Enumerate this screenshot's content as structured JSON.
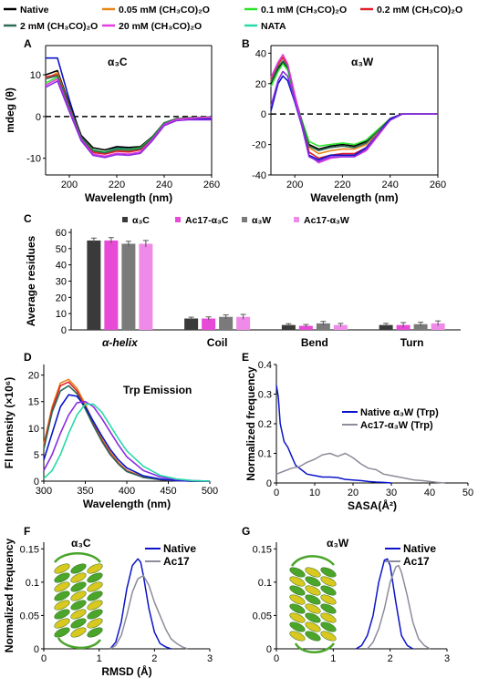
{
  "legend_top": [
    {
      "label": "Native",
      "color": "#000000"
    },
    {
      "label": "0.05 mM (CH₃CO)₂O",
      "color": "#e8841a"
    },
    {
      "label": "0.1 mM (CH₃CO)₂O",
      "color": "#2de42d"
    },
    {
      "label": "0.2 mM (CH₃CO)₂O",
      "color": "#e0202a"
    },
    {
      "label": "2 mM (CH₃CO)₂O",
      "color": "#2e6b5a"
    },
    {
      "label": "20 mM (CH₃CO)₂O",
      "color": "#e23de0"
    },
    {
      "label": "NATA",
      "color": "#27d9a8"
    }
  ],
  "panels": {
    "A": {
      "letter": "A",
      "title": "α₃C"
    },
    "B": {
      "letter": "B",
      "title": "α₃W"
    },
    "C": {
      "letter": "C"
    },
    "D": {
      "letter": "D",
      "title": "Trp Emission"
    },
    "E": {
      "letter": "E"
    },
    "F": {
      "letter": "F",
      "title": "α₃C"
    },
    "G": {
      "letter": "G",
      "title": "α₃W"
    }
  },
  "chart_data": [
    {
      "panel": "A",
      "type": "line",
      "xlabel": "Wavelength (nm)",
      "ylabel": "mdeg (θ)",
      "xlim": [
        190,
        260
      ],
      "ylim": [
        -14,
        17
      ],
      "xticks": [
        200,
        220,
        240,
        260
      ],
      "yticks": [
        -10,
        0,
        10
      ],
      "reference_line": 0,
      "x": [
        190,
        195,
        200,
        205,
        210,
        215,
        220,
        225,
        230,
        235,
        240,
        245,
        250,
        255,
        260
      ],
      "series": [
        {
          "color": "#0a14c8",
          "values": [
            14,
            14,
            4,
            -5,
            -8,
            -8.5,
            -7.5,
            -7.8,
            -7.5,
            -5,
            -1.5,
            -0.5,
            -0.5,
            -0.5,
            -0.5
          ]
        },
        {
          "color": "#000000",
          "values": [
            10,
            11,
            3,
            -4.5,
            -7.5,
            -8,
            -7.2,
            -7.4,
            -7.2,
            -4.8,
            -1.5,
            -0.5,
            -0.3,
            -0.2,
            -0.2
          ]
        },
        {
          "color": "#e8841a",
          "values": [
            9,
            10.5,
            2.5,
            -5,
            -8.3,
            -8.8,
            -8,
            -8.2,
            -7.8,
            -5,
            -1.6,
            -0.6,
            -0.4,
            -0.2,
            -0.1
          ]
        },
        {
          "color": "#2de42d",
          "values": [
            8,
            9.5,
            2,
            -5,
            -8,
            -8.5,
            -7.7,
            -7.9,
            -7.5,
            -4.9,
            -1.5,
            -0.5,
            -0.3,
            -0.2,
            -0.1
          ]
        },
        {
          "color": "#e0202a",
          "values": [
            9.5,
            10,
            2.5,
            -5.2,
            -8.6,
            -9,
            -8.3,
            -8.5,
            -8,
            -5.2,
            -1.7,
            -0.6,
            -0.4,
            -0.3,
            -0.2
          ]
        },
        {
          "color": "#2e6b5a",
          "values": [
            9,
            9.8,
            2.3,
            -5,
            -8.2,
            -8.7,
            -7.9,
            -8.1,
            -7.7,
            -5,
            -1.6,
            -0.6,
            -0.4,
            -0.2,
            -0.1
          ]
        },
        {
          "color": "#e23de0",
          "values": [
            7.5,
            9,
            1.5,
            -5.5,
            -9,
            -9.5,
            -8.8,
            -9,
            -8.5,
            -5.5,
            -1.9,
            -0.7,
            -0.4,
            -0.3,
            -0.2
          ]
        },
        {
          "color": "#8a2be2",
          "values": [
            7,
            8.5,
            1.2,
            -5.8,
            -9.3,
            -9.8,
            -9.1,
            -9.3,
            -8.8,
            -5.8,
            -2.2,
            -1,
            -0.8,
            -0.8,
            -0.8
          ]
        }
      ]
    },
    {
      "panel": "B",
      "type": "line",
      "xlabel": "Wavelength (nm)",
      "ylabel": "",
      "xlim": [
        190,
        260
      ],
      "ylim": [
        -40,
        45
      ],
      "xticks": [
        200,
        220,
        240,
        260
      ],
      "yticks": [
        -40,
        -20,
        0,
        20,
        40
      ],
      "reference_line": 0,
      "x": [
        190,
        193,
        195,
        197,
        200,
        203,
        206,
        210,
        215,
        220,
        225,
        230,
        235,
        240,
        245,
        250,
        260
      ],
      "series": [
        {
          "color": "#000000",
          "values": [
            20,
            30,
            34,
            30,
            12,
            -5,
            -20,
            -23,
            -21,
            -20,
            -21,
            -18,
            -11,
            -3,
            0,
            0,
            0
          ]
        },
        {
          "color": "#e8841a",
          "values": [
            22,
            32,
            38,
            33,
            13,
            -6,
            -22,
            -26,
            -24,
            -23,
            -23,
            -20,
            -12,
            -3,
            0,
            0,
            0
          ]
        },
        {
          "color": "#2de42d",
          "values": [
            18,
            28,
            33,
            29,
            11,
            -4,
            -18,
            -21,
            -20,
            -19,
            -20,
            -17,
            -10,
            -3,
            0,
            0,
            0
          ]
        },
        {
          "color": "#e0202a",
          "values": [
            23,
            33,
            37,
            32,
            12,
            -6,
            -25,
            -29,
            -27,
            -26,
            -26,
            -22,
            -13,
            -3,
            0,
            0,
            0
          ]
        },
        {
          "color": "#2e6b5a",
          "values": [
            21,
            31,
            35,
            31,
            12,
            -5,
            -21,
            -24,
            -22,
            -21,
            -22,
            -19,
            -11,
            -3,
            0,
            0,
            0
          ]
        },
        {
          "color": "#e23de0",
          "values": [
            24,
            34,
            39,
            33,
            13,
            -7,
            -27,
            -32,
            -29,
            -28,
            -28,
            -24,
            -14,
            -4,
            0,
            0,
            0
          ]
        },
        {
          "color": "#0a14c8",
          "values": [
            2,
            20,
            25,
            22,
            8,
            -8,
            -27,
            -30,
            -27,
            -27,
            -27,
            -22,
            -13,
            -3,
            0,
            0,
            0
          ]
        },
        {
          "color": "#8a2be2",
          "values": [
            5,
            22,
            28,
            25,
            9,
            -8,
            -28,
            -31,
            -28,
            -28,
            -28,
            -23,
            -13,
            -4,
            0,
            0,
            0
          ]
        }
      ]
    },
    {
      "panel": "C",
      "type": "bar",
      "ylabel": "Average residues",
      "ylim": [
        0,
        60
      ],
      "yticks": [
        0,
        10,
        20,
        30,
        40,
        50,
        60
      ],
      "categories": [
        "α-helix",
        "Coil",
        "Bend",
        "Turn"
      ],
      "series": [
        {
          "name": "α₃C",
          "color": "#3a3a3a",
          "values": [
            55,
            7,
            3,
            3
          ],
          "errors": [
            1.5,
            0.8,
            0.8,
            1
          ]
        },
        {
          "name": "Ac17-α₃C",
          "color": "#e74ad7",
          "values": [
            55,
            7,
            2.5,
            3
          ],
          "errors": [
            1.8,
            1,
            0.8,
            1.5
          ]
        },
        {
          "name": "α₃W",
          "color": "#7a7a7a",
          "values": [
            53,
            8,
            4,
            3.5
          ],
          "errors": [
            1.5,
            1.2,
            1.2,
            1.2
          ]
        },
        {
          "name": "Ac17-α₃W",
          "color": "#f08ae8",
          "values": [
            53,
            8,
            3,
            4
          ],
          "errors": [
            2,
            1.5,
            1,
            1.5
          ]
        }
      ]
    },
    {
      "panel": "D",
      "type": "line",
      "xlabel": "Wavelength (nm)",
      "ylabel": "Fl Intensity (×10⁶)",
      "xlim": [
        300,
        500
      ],
      "ylim": [
        0,
        22
      ],
      "xticks": [
        300,
        350,
        400,
        450,
        500
      ],
      "yticks": [
        0,
        5,
        10,
        15,
        20
      ],
      "x": [
        300,
        310,
        320,
        330,
        340,
        350,
        360,
        370,
        380,
        390,
        400,
        420,
        440,
        460,
        480,
        500
      ],
      "series": [
        {
          "color": "#e8841a",
          "values": [
            7,
            14,
            18.5,
            19.2,
            17.5,
            14.5,
            11,
            8,
            5.5,
            3.5,
            2,
            0.8,
            0.3,
            0.1,
            0,
            0
          ]
        },
        {
          "color": "#e0202a",
          "values": [
            6.5,
            13.5,
            18,
            18.7,
            17,
            14,
            10.6,
            7.7,
            5.2,
            3.3,
            1.9,
            0.7,
            0.3,
            0.1,
            0,
            0
          ]
        },
        {
          "color": "#2e6b5a",
          "values": [
            6,
            13,
            17,
            18,
            16.5,
            13.6,
            10.4,
            7.5,
            5,
            3.2,
            1.8,
            0.7,
            0.3,
            0.1,
            0,
            0
          ]
        },
        {
          "color": "#0a14c8",
          "values": [
            4,
            9,
            14,
            16.3,
            16,
            14,
            11.2,
            8.5,
            6,
            4,
            2.5,
            1,
            0.4,
            0.1,
            0,
            0
          ]
        },
        {
          "color": "#8a2be2",
          "values": [
            2,
            5,
            9,
            12.5,
            14.8,
            15,
            14,
            11.8,
            9.3,
            6.8,
            4.6,
            2,
            0.8,
            0.3,
            0.1,
            0
          ]
        },
        {
          "color": "#27d9a8",
          "values": [
            0.5,
            2,
            5,
            9,
            12.5,
            14.5,
            14.5,
            13,
            10.5,
            8,
            5.7,
            2.8,
            1.1,
            0.4,
            0.1,
            0
          ]
        }
      ]
    },
    {
      "panel": "E",
      "type": "line",
      "xlabel": "SASA(Å²)",
      "ylabel": "Normalized frequency",
      "xlim": [
        0,
        50
      ],
      "ylim": [
        0,
        0.4
      ],
      "xticks": [
        0,
        10,
        20,
        30,
        40,
        50
      ],
      "yticks": [
        0,
        0.1,
        0.2,
        0.3,
        0.4
      ],
      "series": [
        {
          "name": "Native α₃W (Trp)",
          "color": "#0a14c8",
          "x": [
            0,
            0.5,
            1,
            2,
            3,
            4,
            5,
            6,
            7,
            8,
            10,
            12,
            14,
            16,
            18,
            20,
            22,
            24,
            26,
            28,
            30
          ],
          "values": [
            0.33,
            0.29,
            0.2,
            0.14,
            0.12,
            0.09,
            0.06,
            0.05,
            0.04,
            0.03,
            0.025,
            0.02,
            0.02,
            0.018,
            0.012,
            0.01,
            0.008,
            0.005,
            0.003,
            0.002,
            0
          ]
        },
        {
          "name": "Ac17-α₃W (Trp)",
          "color": "#8c8c9a",
          "x": [
            0,
            2,
            4,
            6,
            8,
            10,
            12,
            14,
            16,
            18,
            20,
            22,
            24,
            26,
            28,
            30,
            32,
            34,
            36,
            38,
            40,
            42,
            44
          ],
          "values": [
            0.03,
            0.04,
            0.05,
            0.055,
            0.07,
            0.08,
            0.095,
            0.1,
            0.09,
            0.1,
            0.085,
            0.065,
            0.05,
            0.045,
            0.03,
            0.025,
            0.02,
            0.015,
            0.01,
            0.008,
            0.005,
            0.002,
            0
          ]
        }
      ]
    },
    {
      "panel": "F",
      "type": "line",
      "xlabel": "RMSD (Å)",
      "ylabel": "Normalized frequency",
      "xlim": [
        0,
        3
      ],
      "ylim": [
        0,
        0.16
      ],
      "xticks": [
        0,
        1,
        2,
        3
      ],
      "yticks": [
        0,
        0.05,
        0.1,
        0.15
      ],
      "series": [
        {
          "name": "Native",
          "color": "#0a14c8",
          "x": [
            1.2,
            1.3,
            1.4,
            1.5,
            1.6,
            1.7,
            1.75,
            1.8,
            1.9,
            2.0,
            2.1,
            2.2,
            2.3
          ],
          "values": [
            0,
            0.01,
            0.04,
            0.09,
            0.125,
            0.135,
            0.13,
            0.11,
            0.06,
            0.025,
            0.008,
            0.003,
            0
          ]
        },
        {
          "name": "Ac17",
          "color": "#8c8c9a",
          "x": [
            1.2,
            1.3,
            1.4,
            1.5,
            1.6,
            1.7,
            1.8,
            1.9,
            2.0,
            2.1,
            2.2,
            2.3,
            2.4,
            2.5,
            2.6
          ],
          "values": [
            0,
            0.005,
            0.02,
            0.05,
            0.085,
            0.105,
            0.11,
            0.095,
            0.07,
            0.05,
            0.03,
            0.015,
            0.008,
            0.003,
            0
          ]
        }
      ]
    },
    {
      "panel": "G",
      "type": "line",
      "xlabel": "",
      "ylabel": "",
      "xlim": [
        0,
        3
      ],
      "ylim": [
        0,
        0.16
      ],
      "xticks": [
        0,
        1,
        2,
        3
      ],
      "yticks": [
        0,
        0.05,
        0.1,
        0.15
      ],
      "series": [
        {
          "name": "Native",
          "color": "#0a14c8",
          "x": [
            1.4,
            1.5,
            1.6,
            1.7,
            1.8,
            1.9,
            1.95,
            2.0,
            2.1,
            2.2,
            2.3,
            2.4
          ],
          "values": [
            0,
            0.005,
            0.02,
            0.05,
            0.1,
            0.133,
            0.135,
            0.125,
            0.07,
            0.02,
            0.005,
            0
          ]
        },
        {
          "name": "Ac17",
          "color": "#8c8c9a",
          "x": [
            1.6,
            1.7,
            1.8,
            1.9,
            2.0,
            2.1,
            2.15,
            2.2,
            2.3,
            2.4,
            2.5,
            2.6,
            2.7
          ],
          "values": [
            0,
            0.01,
            0.03,
            0.06,
            0.1,
            0.123,
            0.125,
            0.115,
            0.08,
            0.04,
            0.015,
            0.005,
            0
          ]
        }
      ]
    }
  ]
}
